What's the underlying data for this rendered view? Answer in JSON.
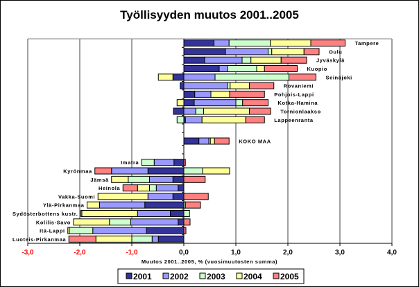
{
  "chart_data": {
    "type": "bar",
    "orientation": "horizontal",
    "stacked": true,
    "title": "Työllisyyden muutos 2001..2005",
    "xlabel": "Muutos 2001..2005, % (vuosimuutosten summa)",
    "ylabel": "",
    "xlim": [
      -3.0,
      4.0
    ],
    "xticks": [
      "-3,0",
      "-2,0",
      "-1,0",
      "0,0",
      "1,0",
      "2,0",
      "3,0",
      "4,0"
    ],
    "xtick_values": [
      -3,
      -2,
      -1,
      0,
      1,
      2,
      3,
      4
    ],
    "negative_tick_color": "#FF0000",
    "grid": true,
    "legend_position": "bottom",
    "categories": [
      "Tampere",
      "Oulu",
      "Jyväskylä",
      "Kuopio",
      "Seinäjoki",
      "Rovaniemi",
      "Pohjois-Lappi",
      "Kotka-Hamina",
      "Tornionlaakso",
      "Lappeenranta",
      "",
      "KOKO MAA",
      "",
      "Imatra",
      "Kyrönmaa",
      "Jämsä",
      "Heinola",
      "Vakka-Suomi",
      "Ylä-Pirkanmaa",
      "Sydösterbottens kustr.",
      "Kolilis-Savo",
      "Itä-Lappi",
      "Luoteis-Pirkanmaa"
    ],
    "series": [
      {
        "name": "2001",
        "color": "#333399",
        "values": [
          0.58,
          0.8,
          0.4,
          0.68,
          -0.21,
          -0.07,
          0.21,
          0.2,
          -0.2,
          0.03,
          null,
          0.29,
          null,
          -0.19,
          -0.69,
          -0.21,
          -0.11,
          -0.21,
          -0.75,
          -0.26,
          -0.11,
          -0.72,
          -0.49
        ]
      },
      {
        "name": "2002",
        "color": "#9999FF",
        "values": [
          0.29,
          0.82,
          0.72,
          0.16,
          0.6,
          0.84,
          0.31,
          0.8,
          0.23,
          0.32,
          null,
          0.19,
          null,
          -0.38,
          -0.7,
          -0.45,
          -0.42,
          -0.48,
          -0.87,
          -0.63,
          -0.91,
          -1.03,
          -0.12
        ]
      },
      {
        "name": "2003",
        "color": "#CCFFCC",
        "values": [
          0.79,
          0.07,
          0.17,
          0.56,
          1.42,
          0.05,
          0.0,
          0.13,
          0.15,
          -0.13,
          null,
          0.03,
          null,
          -0.24,
          0.36,
          -0.41,
          -0.13,
          0.0,
          0.03,
          0.11,
          -0.41,
          -0.45,
          -0.39
        ]
      },
      {
        "name": "2004",
        "color": "#FFFF99",
        "values": [
          0.78,
          0.62,
          0.58,
          0.15,
          -0.28,
          0.37,
          0.36,
          -0.13,
          0.88,
          0.84,
          null,
          0.08,
          null,
          0.0,
          0.52,
          -0.32,
          -0.23,
          -0.96,
          -0.24,
          -1.07,
          -0.69,
          -0.03,
          -0.69
        ]
      },
      {
        "name": "2005",
        "color": "#FF8080",
        "values": [
          0.66,
          0.29,
          0.49,
          0.63,
          0.52,
          0.47,
          0.67,
          0.49,
          0.41,
          0.36,
          null,
          0.28,
          null,
          0.03,
          -0.32,
          0.41,
          -0.28,
          0.47,
          0.29,
          -0.02,
          0.12,
          0.04,
          -0.52
        ]
      }
    ]
  }
}
